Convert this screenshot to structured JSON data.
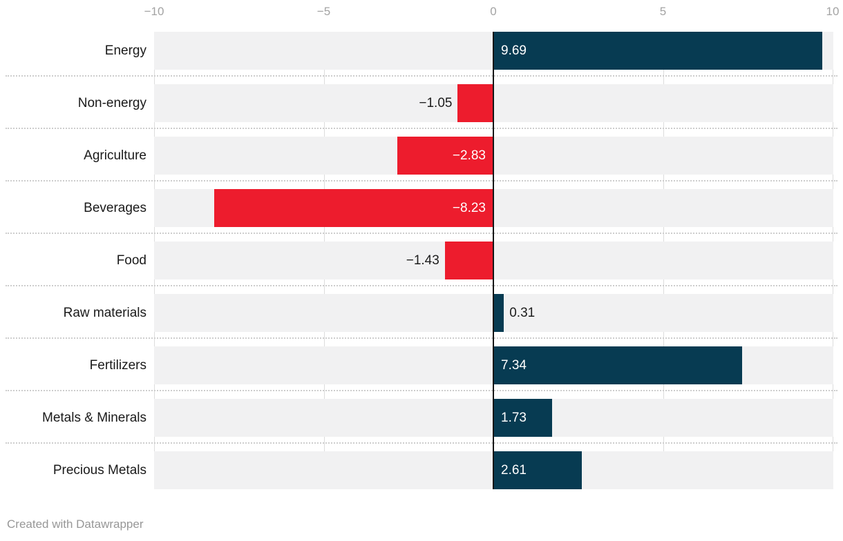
{
  "chart_data": {
    "type": "bar",
    "orientation": "horizontal",
    "title": "",
    "categories": [
      "Energy",
      "Non-energy",
      "Agriculture",
      "Beverages",
      "Food",
      "Raw materials",
      "Fertilizers",
      "Metals & Minerals",
      "Precious Metals"
    ],
    "values": [
      9.69,
      -1.05,
      -2.83,
      -8.23,
      -1.43,
      0.31,
      7.34,
      1.73,
      2.61
    ],
    "value_labels": [
      "9.69",
      "−1.05",
      "−2.83",
      "−8.23",
      "−1.43",
      "0.31",
      "7.34",
      "1.73",
      "2.61"
    ],
    "x_axis": {
      "position": "top",
      "range": [
        -10,
        10
      ],
      "ticks": [
        -10,
        -5,
        0,
        5,
        10
      ],
      "tick_labels": [
        "−10",
        "−5",
        "0",
        "5",
        "10"
      ]
    },
    "grid": true,
    "legend": false,
    "colors": {
      "positive_bar": "#073b52",
      "negative_bar": "#ed1c2d",
      "row_band": "#f1f1f2",
      "gridline": "#dcdcdc",
      "zero_line": "#161616",
      "separator": "#cdcdcd",
      "label_inside": "#ffffff",
      "label_outside": "#1d1d1d",
      "tick_label": "#a3a3a3",
      "category_label": "#1a1a1a"
    }
  },
  "footer": {
    "credit": "Created with Datawrapper"
  }
}
